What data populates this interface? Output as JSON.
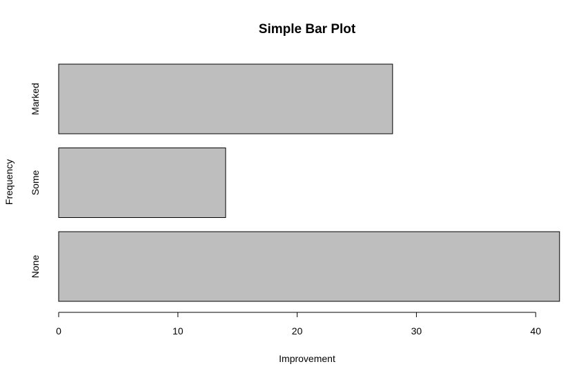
{
  "chart_data": {
    "type": "bar",
    "orientation": "horizontal",
    "title": "Simple Bar Plot",
    "xlabel": "Improvement",
    "ylabel": "Frequency",
    "categories": [
      "None",
      "Some",
      "Marked"
    ],
    "values": [
      42,
      14,
      28
    ],
    "xlim": [
      0,
      42
    ],
    "xticks": [
      0,
      10,
      20,
      30,
      40
    ],
    "bar_color": "#bebebe",
    "bar_outline": "#000000",
    "grid": false,
    "legend": "none"
  }
}
